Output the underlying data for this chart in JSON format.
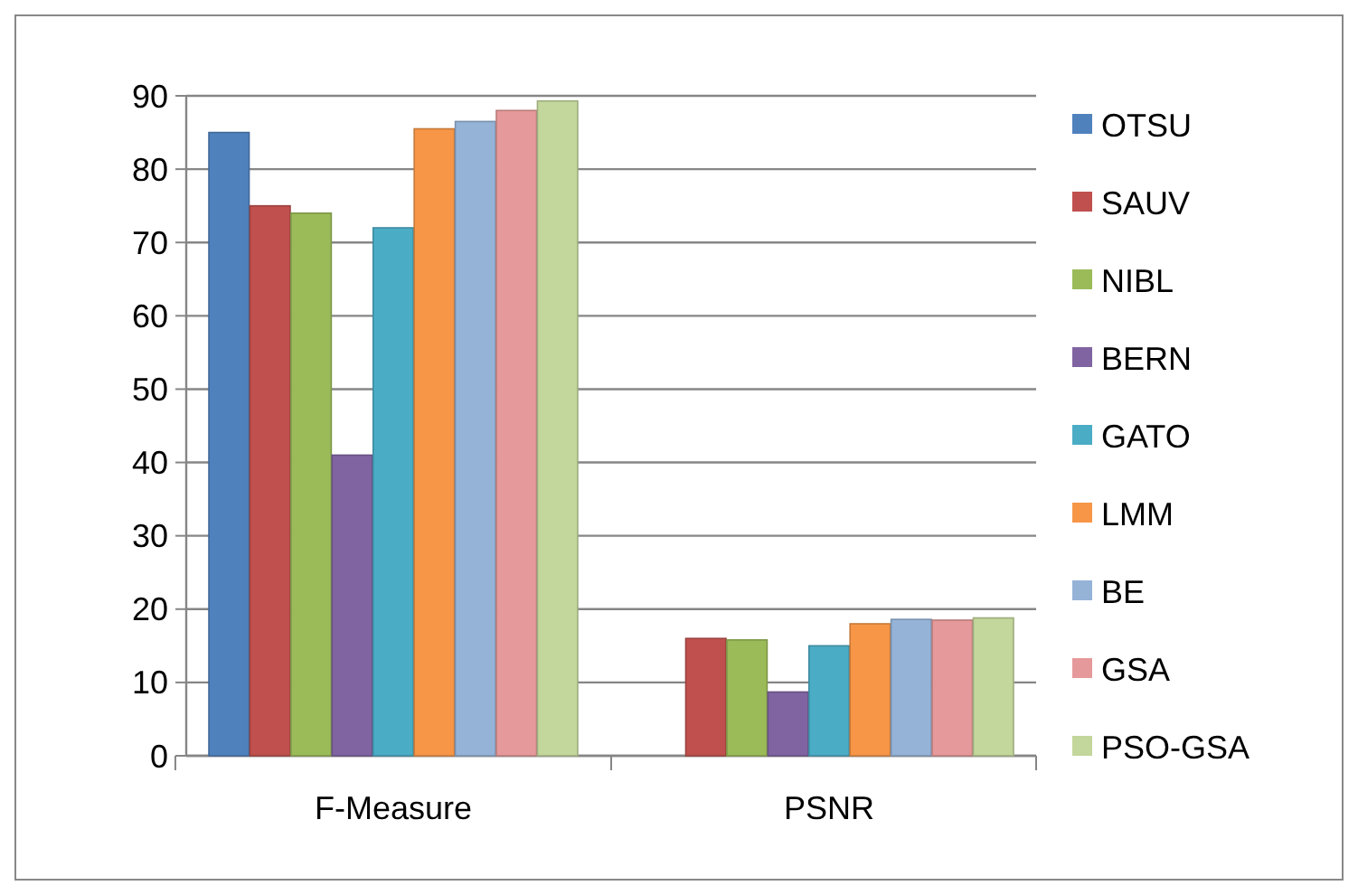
{
  "chart_data": {
    "type": "bar",
    "categories": [
      "F-Measure",
      "PSNR"
    ],
    "series": [
      {
        "name": "OTSU",
        "color": "#4f81bd",
        "values": [
          85,
          null
        ]
      },
      {
        "name": "SAUV",
        "color": "#c0504d",
        "values": [
          75,
          16
        ]
      },
      {
        "name": "NIBL",
        "color": "#9bbb59",
        "values": [
          74,
          15.8
        ]
      },
      {
        "name": "BERN",
        "color": "#8064a2",
        "values": [
          41,
          8.7
        ]
      },
      {
        "name": "GATO",
        "color": "#4bacc6",
        "values": [
          72,
          15
        ]
      },
      {
        "name": "LMM",
        "color": "#f79646",
        "values": [
          85.5,
          18
        ]
      },
      {
        "name": "BE",
        "color": "#95b3d7",
        "values": [
          86.5,
          18.6
        ]
      },
      {
        "name": "GSA",
        "color": "#e6999a",
        "values": [
          88,
          18.5
        ]
      },
      {
        "name": "PSO-GSA",
        "color": "#c3d69b",
        "values": [
          89.3,
          18.8
        ]
      }
    ],
    "ylim": [
      0,
      90
    ],
    "yticks": [
      0,
      10,
      20,
      30,
      40,
      50,
      60,
      70,
      80,
      90
    ],
    "grid": "y",
    "legend": "right"
  }
}
